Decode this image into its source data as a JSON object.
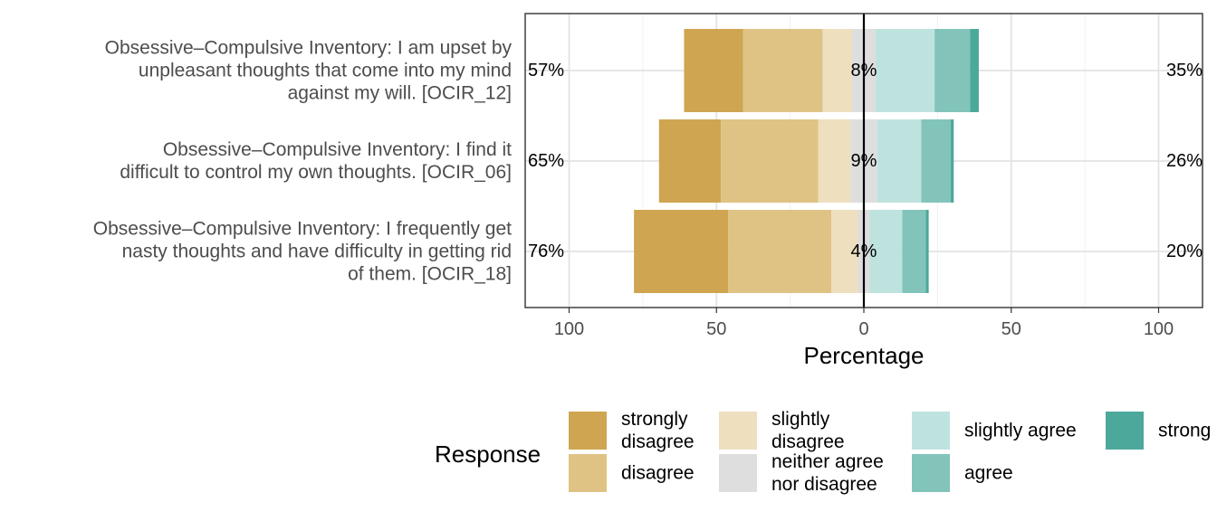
{
  "chart_data": {
    "type": "bar",
    "orientation": "horizontal",
    "stacked": "diverging",
    "title": "",
    "xlabel": "Percentage",
    "ylabel": "",
    "xlim": [
      -100,
      100
    ],
    "x_ticks": [
      -100,
      -50,
      0,
      50,
      100
    ],
    "x_tick_labels": [
      "100",
      "50",
      "0",
      "50",
      "100"
    ],
    "grid": true,
    "legend_title": "Response",
    "legend_position": "bottom",
    "responses": [
      {
        "label": "strongly disagree",
        "lines": [
          "strongly",
          "disagree"
        ],
        "color": "#CFA551"
      },
      {
        "label": "disagree",
        "lines": [
          "disagree"
        ],
        "color": "#DFC385"
      },
      {
        "label": "slightly disagree",
        "lines": [
          "slightly",
          "disagree"
        ],
        "color": "#EEDFBF"
      },
      {
        "label": "neither agree nor disagree",
        "lines": [
          "neither agree",
          "nor disagree"
        ],
        "color": "#DEDEDE"
      },
      {
        "label": "slightly agree",
        "lines": [
          "slightly agree"
        ],
        "color": "#BEE3DF"
      },
      {
        "label": "agree",
        "lines": [
          "agree"
        ],
        "color": "#83C4BA"
      },
      {
        "label": "strongly agree",
        "lines": [
          "strong"
        ],
        "color": "#4DA89C"
      }
    ],
    "items": [
      {
        "label_lines": [
          "Obsessive–Compulsive Inventory: I am upset by",
          "unpleasant thoughts that come into my mind",
          "against my will. [OCIR_12]"
        ],
        "values": [
          20,
          27,
          10,
          8,
          20,
          12,
          3
        ],
        "left_label": "57%",
        "center_label": "8%",
        "right_label": "35%"
      },
      {
        "label_lines": [
          "Obsessive–Compulsive Inventory: I find it",
          "difficult to control my own thoughts. [OCIR_06]"
        ],
        "values": [
          21,
          33,
          11,
          9,
          15,
          10,
          1
        ],
        "left_label": "65%",
        "center_label": "9%",
        "right_label": "26%"
      },
      {
        "label_lines": [
          "Obsessive–Compulsive Inventory: I frequently get",
          "nasty thoughts and have difficulty in getting rid",
          "of them. [OCIR_18]"
        ],
        "values": [
          32,
          35,
          9,
          4,
          11,
          8,
          1
        ],
        "left_label": "76%",
        "center_label": "4%",
        "right_label": "20%"
      }
    ]
  }
}
